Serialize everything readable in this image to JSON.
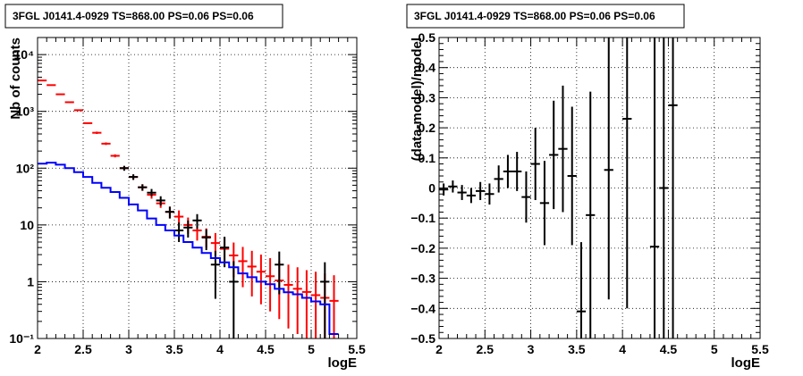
{
  "chart_data": [
    {
      "type": "line",
      "title": "3FGL J0141.4-0929 TS=868.00 PS=0.06 PS=0.06",
      "xlabel": "logE",
      "ylabel": "Nb of counts",
      "xlim": [
        2,
        5.5
      ],
      "ylim": [
        0.1,
        20000
      ],
      "yscale": "log",
      "grid": true,
      "xticks": [
        {
          "v": 2,
          "label": "2"
        },
        {
          "v": 2.5,
          "label": "2.5"
        },
        {
          "v": 3,
          "label": "3"
        },
        {
          "v": 3.5,
          "label": "3.5"
        },
        {
          "v": 4,
          "label": "4"
        },
        {
          "v": 4.5,
          "label": "4.5"
        },
        {
          "v": 5,
          "label": "5"
        },
        {
          "v": 5.5,
          "label": "5.5"
        }
      ],
      "yticks": [
        {
          "v": 0.1,
          "label": "10⁻¹"
        },
        {
          "v": 1,
          "label": "1"
        },
        {
          "v": 10,
          "label": "10"
        },
        {
          "v": 100,
          "label": "10²"
        },
        {
          "v": 1000,
          "label": "10³"
        },
        {
          "v": 10000,
          "label": "10⁴"
        }
      ],
      "series": [
        {
          "color": "#ff0000",
          "style": "errorbar",
          "x": [
            2.05,
            2.15,
            2.25,
            2.35,
            2.45,
            2.55,
            2.65,
            2.75,
            2.85,
            2.95,
            3.05,
            3.15,
            3.25,
            3.35,
            3.45,
            3.55,
            3.65,
            3.75,
            3.85,
            3.95,
            4.05,
            4.15,
            4.25,
            4.35,
            4.45,
            4.55,
            4.65,
            4.75,
            4.85,
            4.95,
            5.05,
            5.15,
            5.25
          ],
          "values": [
            3500,
            2900,
            2000,
            1450,
            1050,
            620,
            420,
            270,
            165,
            100,
            70,
            46,
            34,
            24,
            17,
            14,
            10,
            8,
            6.2,
            4.8,
            3.8,
            2.9,
            2.3,
            1.85,
            1.5,
            1.25,
            1.05,
            0.88,
            0.75,
            0.66,
            0.58,
            0.52,
            0.46
          ],
          "lo": [
            3440,
            2840,
            1950,
            1410,
            1020,
            600,
            400,
            256,
            155,
            92,
            63,
            40,
            29,
            20,
            13,
            10.5,
            7,
            5.3,
            4,
            2.8,
            1.9,
            1.2,
            0.8,
            0.55,
            0.4,
            0.3,
            0.22,
            0.15,
            0.12,
            0.1,
            0.1,
            0.1,
            0.1
          ],
          "hi": [
            3560,
            2960,
            2050,
            1490,
            1080,
            640,
            440,
            284,
            175,
            108,
            77,
            52,
            39,
            28,
            21,
            18,
            13.5,
            11,
            8.7,
            7.2,
            6,
            4.9,
            4.1,
            3.5,
            3,
            2.6,
            2.3,
            2,
            1.8,
            1.6,
            1.5,
            1.4,
            1.3
          ]
        },
        {
          "color": "#000000",
          "style": "errorbar",
          "x": [
            2.95,
            3.05,
            3.15,
            3.25,
            3.35,
            3.45,
            3.55,
            3.65,
            3.75,
            3.85,
            3.95,
            4.05,
            4.15,
            4.65,
            5.15
          ],
          "values": [
            100,
            70,
            46,
            37,
            27,
            17,
            8,
            9,
            12,
            6,
            2,
            4,
            1,
            2,
            1
          ],
          "lo": [
            90,
            62,
            40,
            32,
            22,
            13,
            5,
            6,
            8.5,
            3.6,
            0.5,
            1.8,
            0.1,
            0.6,
            0.1
          ],
          "hi": [
            110,
            78,
            52,
            43,
            32,
            21,
            11,
            12,
            15.5,
            8.4,
            3.5,
            6.2,
            2.3,
            3.4,
            2.2
          ]
        },
        {
          "color": "#0000ff",
          "style": "step",
          "x": [
            2.05,
            2.15,
            2.25,
            2.35,
            2.45,
            2.55,
            2.65,
            2.75,
            2.85,
            2.95,
            3.05,
            3.15,
            3.25,
            3.35,
            3.45,
            3.55,
            3.65,
            3.75,
            3.85,
            3.95,
            4.05,
            4.15,
            4.25,
            4.35,
            4.45,
            4.55,
            4.65,
            4.75,
            4.85,
            4.95,
            5.05,
            5.15,
            5.25
          ],
          "values": [
            120,
            125,
            115,
            100,
            85,
            70,
            55,
            45,
            38,
            30,
            23,
            18,
            13,
            10,
            8,
            6.5,
            5,
            4,
            3.2,
            2.6,
            2.2,
            1.8,
            1.4,
            1.2,
            1,
            0.9,
            0.75,
            0.65,
            0.6,
            0.52,
            0.45,
            0.4,
            0.12
          ]
        }
      ]
    },
    {
      "type": "scatter",
      "title": "3FGL J0141.4-0929 TS=868.00 PS=0.06 PS=0.06",
      "xlabel": "logE",
      "ylabel": "(data-model)/model",
      "xlim": [
        2,
        5.5
      ],
      "ylim": [
        -0.5,
        0.5
      ],
      "grid": true,
      "xticks": [
        {
          "v": 2,
          "label": "2"
        },
        {
          "v": 2.5,
          "label": "2.5"
        },
        {
          "v": 3,
          "label": "3"
        },
        {
          "v": 3.5,
          "label": "3.5"
        },
        {
          "v": 4,
          "label": "4"
        },
        {
          "v": 4.5,
          "label": "4.5"
        },
        {
          "v": 5,
          "label": "5"
        },
        {
          "v": 5.5,
          "label": "5.5"
        }
      ],
      "yticks": [
        {
          "v": -0.5,
          "label": "−0.5"
        },
        {
          "v": -0.4,
          "label": "−0.4"
        },
        {
          "v": -0.3,
          "label": "−0.3"
        },
        {
          "v": -0.2,
          "label": "−0.2"
        },
        {
          "v": -0.1,
          "label": "−0.1"
        },
        {
          "v": 0,
          "label": "0"
        },
        {
          "v": 0.1,
          "label": "0.1"
        },
        {
          "v": 0.2,
          "label": "0.2"
        },
        {
          "v": 0.3,
          "label": "0.3"
        },
        {
          "v": 0.4,
          "label": "0.4"
        },
        {
          "v": 0.5,
          "label": "0.5"
        }
      ],
      "series": [
        {
          "color": "#000000",
          "style": "errorbar",
          "x": [
            2.05,
            2.15,
            2.25,
            2.35,
            2.45,
            2.55,
            2.65,
            2.75,
            2.85,
            2.95,
            3.05,
            3.15,
            3.25,
            3.35,
            3.45,
            3.55,
            3.65,
            3.85,
            4.05,
            4.35,
            4.45,
            4.55
          ],
          "values": [
            -0.005,
            0.005,
            -0.015,
            -0.025,
            -0.01,
            -0.02,
            0.03,
            0.055,
            0.055,
            -0.03,
            0.08,
            -0.05,
            0.11,
            0.13,
            0.04,
            -0.41,
            -0.09,
            0.06,
            0.23,
            -0.195,
            0.0,
            0.275
          ],
          "lo": [
            -0.025,
            -0.015,
            -0.04,
            -0.05,
            -0.04,
            -0.055,
            -0.015,
            0.0,
            -0.01,
            -0.115,
            -0.04,
            -0.19,
            -0.07,
            -0.08,
            -0.19,
            -0.5,
            -0.5,
            -0.37,
            -0.4,
            -0.5,
            -0.5,
            -0.5
          ],
          "hi": [
            0.015,
            0.025,
            0.01,
            0.0,
            0.02,
            0.015,
            0.075,
            0.11,
            0.12,
            0.055,
            0.2,
            0.09,
            0.29,
            0.34,
            0.27,
            -0.18,
            0.32,
            0.5,
            0.5,
            0.5,
            0.5,
            0.5
          ]
        }
      ]
    }
  ]
}
